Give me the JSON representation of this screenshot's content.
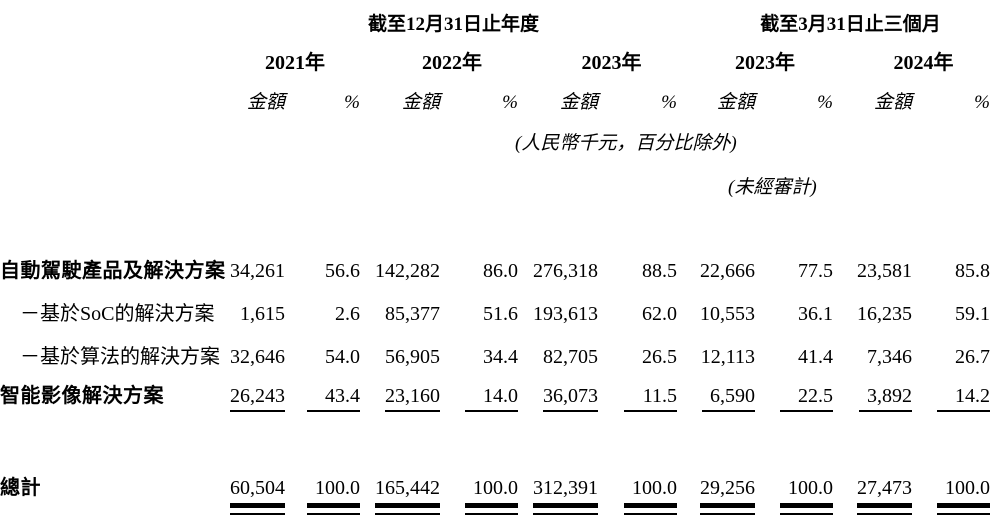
{
  "table": {
    "group_headers": {
      "annual": "截至12月31日止年度",
      "quarter": "截至3月31日止三個月"
    },
    "year_headers": [
      "2021年",
      "2022年",
      "2023年",
      "2023年",
      "2024年"
    ],
    "col_headers": {
      "amount": "金額",
      "percent": "%"
    },
    "notes": {
      "unit": "(人民幣千元，百分比除外)",
      "unaudited": "(未經審計)"
    },
    "rows": [
      {
        "label": "自動駕駛產品及解決方案",
        "values": [
          "34,261",
          "56.6",
          "142,282",
          "86.0",
          "276,318",
          "88.5",
          "22,666",
          "77.5",
          "23,581",
          "85.8"
        ]
      },
      {
        "label": "－基於SoC的解決方案",
        "values": [
          "1,615",
          "2.6",
          "85,377",
          "51.6",
          "193,613",
          "62.0",
          "10,553",
          "36.1",
          "16,235",
          "59.1"
        ]
      },
      {
        "label": "－基於算法的解決方案",
        "values": [
          "32,646",
          "54.0",
          "56,905",
          "34.4",
          "82,705",
          "26.5",
          "12,113",
          "41.4",
          "7,346",
          "26.7"
        ]
      },
      {
        "label": "智能影像解決方案",
        "values": [
          "26,243",
          "43.4",
          "23,160",
          "14.0",
          "36,073",
          "11.5",
          "6,590",
          "22.5",
          "3,892",
          "14.2"
        ]
      }
    ],
    "total_row": {
      "label": "總計",
      "values": [
        "60,504",
        "100.0",
        "165,442",
        "100.0",
        "312,391",
        "100.0",
        "29,256",
        "100.0",
        "27,473",
        "100.0"
      ]
    }
  }
}
